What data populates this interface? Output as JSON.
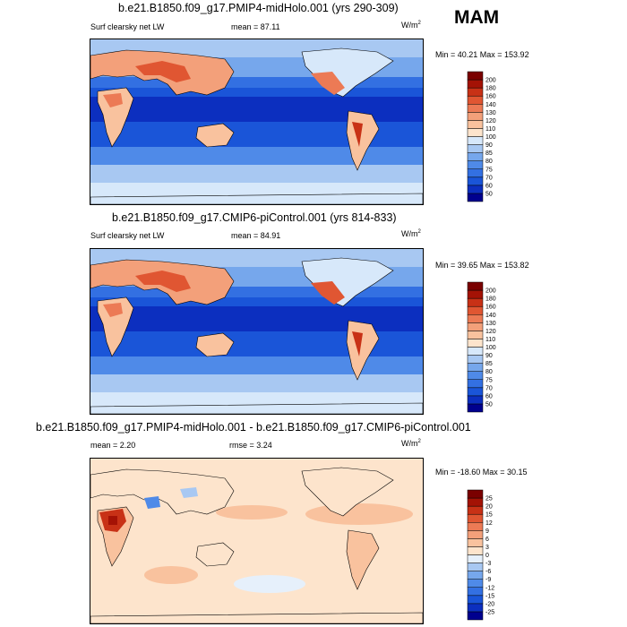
{
  "season": "MAM",
  "panels": [
    {
      "title": "b.e21.B1850.f09_g17.PMIP4-midHolo.001 (yrs 290-309)",
      "variable": "Surf clearsky net LW",
      "stat_text": "mean =  87.11",
      "units": "W/m",
      "units_sup": "2",
      "minmax": "Min =  40.21 Max = 153.92",
      "kind": "abs"
    },
    {
      "title": "b.e21.B1850.f09_g17.CMIP6-piControl.001 (yrs 814-833)",
      "variable": "Surf clearsky net LW",
      "stat_text": "mean =  84.91",
      "units": "W/m",
      "units_sup": "2",
      "minmax": "Min =  39.65 Max = 153.82",
      "kind": "abs"
    },
    {
      "title": "b.e21.B1850.f09_g17.PMIP4-midHolo.001 - b.e21.B1850.f09_g17.CMIP6-piControl.001",
      "mean_text": "mean =  2.20",
      "rmse_text": "rmse =  3.24",
      "units": "W/m",
      "units_sup": "2",
      "minmax": "Min = -18.60 Max =  30.15",
      "kind": "diff"
    }
  ],
  "chart_data": [
    {
      "type": "heatmap",
      "title": "b.e21.B1850.f09_g17.PMIP4-midHolo.001 (yrs 290-309)",
      "field": "Surf clearsky net LW",
      "units": "W/m2",
      "mean": 87.11,
      "min": 40.21,
      "max": 153.92,
      "levels": [
        50,
        60,
        70,
        75,
        80,
        85,
        90,
        100,
        110,
        120,
        130,
        140,
        160,
        180,
        200
      ],
      "colors": [
        "#00008e",
        "#0c2fbf",
        "#1a55d8",
        "#3370e2",
        "#4f8ae8",
        "#76a7ec",
        "#a8c8f2",
        "#d7e8fa",
        "#fde4cc",
        "#f9c29e",
        "#f3a07a",
        "#ec7a55",
        "#e05632",
        "#c83116",
        "#a41205",
        "#7a0000"
      ]
    },
    {
      "type": "heatmap",
      "title": "b.e21.B1850.f09_g17.CMIP6-piControl.001 (yrs 814-833)",
      "field": "Surf clearsky net LW",
      "units": "W/m2",
      "mean": 84.91,
      "min": 39.65,
      "max": 153.82,
      "levels": [
        50,
        60,
        70,
        75,
        80,
        85,
        90,
        100,
        110,
        120,
        130,
        140,
        160,
        180,
        200
      ],
      "colors": [
        "#00008e",
        "#0c2fbf",
        "#1a55d8",
        "#3370e2",
        "#4f8ae8",
        "#76a7ec",
        "#a8c8f2",
        "#d7e8fa",
        "#fde4cc",
        "#f9c29e",
        "#f3a07a",
        "#ec7a55",
        "#e05632",
        "#c83116",
        "#a41205",
        "#7a0000"
      ]
    },
    {
      "type": "heatmap",
      "title": "b.e21.B1850.f09_g17.PMIP4-midHolo.001 - b.e21.B1850.f09_g17.CMIP6-piControl.001",
      "field": "Surf clearsky net LW",
      "units": "W/m2",
      "mean": 2.2,
      "rmse": 3.24,
      "min": -18.6,
      "max": 30.15,
      "levels": [
        -25,
        -20,
        -15,
        -12,
        -9,
        -6,
        -3,
        0,
        3,
        6,
        9,
        12,
        15,
        20,
        25
      ],
      "colors": [
        "#00008e",
        "#0c2fbf",
        "#1a55d8",
        "#3370e2",
        "#4f8ae8",
        "#76a7ec",
        "#a8c8f2",
        "#e6f0fb",
        "#fde4cc",
        "#f9c29e",
        "#f3a07a",
        "#ec7a55",
        "#e05632",
        "#c83116",
        "#a41205",
        "#7a0000"
      ]
    }
  ]
}
